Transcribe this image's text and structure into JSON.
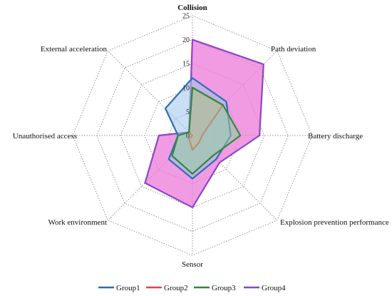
{
  "chart_data": {
    "type": "radar",
    "axes": [
      "Collision",
      "Path deviation",
      "Battery discharge",
      "Explosion prevention performance",
      "Sensor",
      "Work environment",
      "Unauthorised access",
      "External acceleration"
    ],
    "ticks": [
      "0",
      "5",
      "10",
      "15",
      "20",
      "25"
    ],
    "rmax": 25,
    "grid": true,
    "legend_position": "bottom",
    "series": [
      {
        "name": "Group1",
        "color": "#2f6eb5",
        "fill": "#9cc4ec",
        "values": [
          12,
          10,
          8,
          7,
          9,
          7,
          3,
          8
        ]
      },
      {
        "name": "Group2",
        "color": "#e8404a",
        "fill": "#f59aa4",
        "values": [
          10,
          9,
          2,
          2,
          3,
          1,
          0,
          1
        ]
      },
      {
        "name": "Group3",
        "color": "#2e8b3a",
        "fill": "#8fd19a",
        "values": [
          10,
          9,
          10,
          6,
          8,
          6,
          3,
          1
        ]
      },
      {
        "name": "Group4",
        "color": "#8b46c8",
        "fill": "#ec7ad9",
        "values": [
          20,
          21,
          14,
          8,
          15,
          14,
          7,
          1
        ]
      }
    ]
  }
}
